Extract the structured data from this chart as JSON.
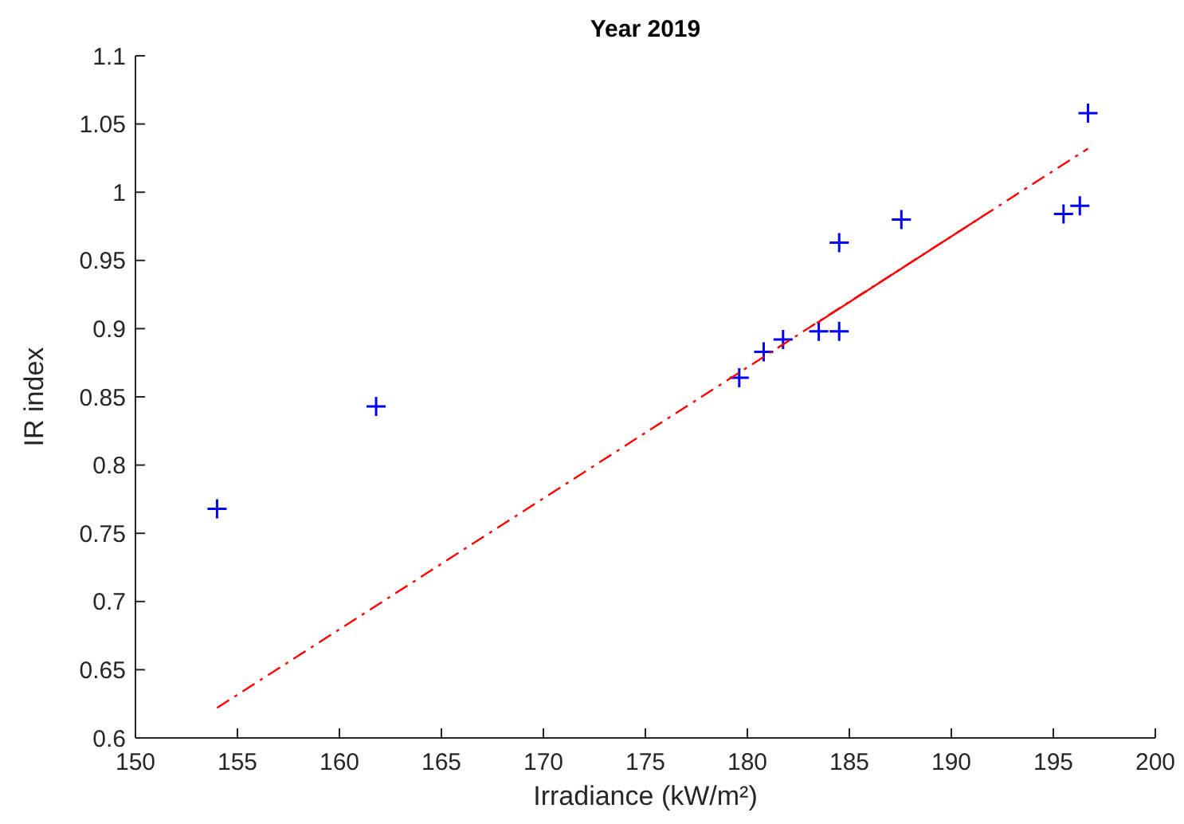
{
  "chart_data": {
    "type": "scatter",
    "title": "Year 2019",
    "xlabel": "Irradiance (kW/m²)",
    "ylabel": "IR index",
    "xlim": [
      150,
      200
    ],
    "xticks": [
      150,
      155,
      160,
      165,
      170,
      175,
      180,
      185,
      190,
      195,
      200
    ],
    "ylim": [
      0.6,
      1.1
    ],
    "yticks": [
      0.6,
      0.65,
      0.7,
      0.75,
      0.8,
      0.85,
      0.9,
      0.95,
      1,
      1.05,
      1.1
    ],
    "grid": false,
    "marker": "cross",
    "series": [
      {
        "color": "#0000ff",
        "x": [
          154.0,
          161.8,
          179.6,
          180.8,
          181.75,
          183.5,
          184.5,
          184.5,
          187.55,
          195.5,
          196.3,
          196.7
        ],
        "values": [
          0.768,
          0.843,
          0.864,
          0.883,
          0.892,
          0.898,
          0.898,
          0.963,
          0.98,
          0.984,
          0.99,
          1.058
        ]
      },
      {
        "type": "line",
        "color": "#ff0000",
        "marker": "none",
        "line_style": "dashed",
        "x": [
          154.0,
          196.7
        ],
        "values": [
          0.622,
          1.032
        ]
      },
      {
        "type": "line",
        "color": "#ff0000",
        "marker": "none",
        "line_style": "solid",
        "x": [
          183.4,
          191.5
        ],
        "values": [
          0.904,
          0.982
        ]
      }
    ]
  }
}
